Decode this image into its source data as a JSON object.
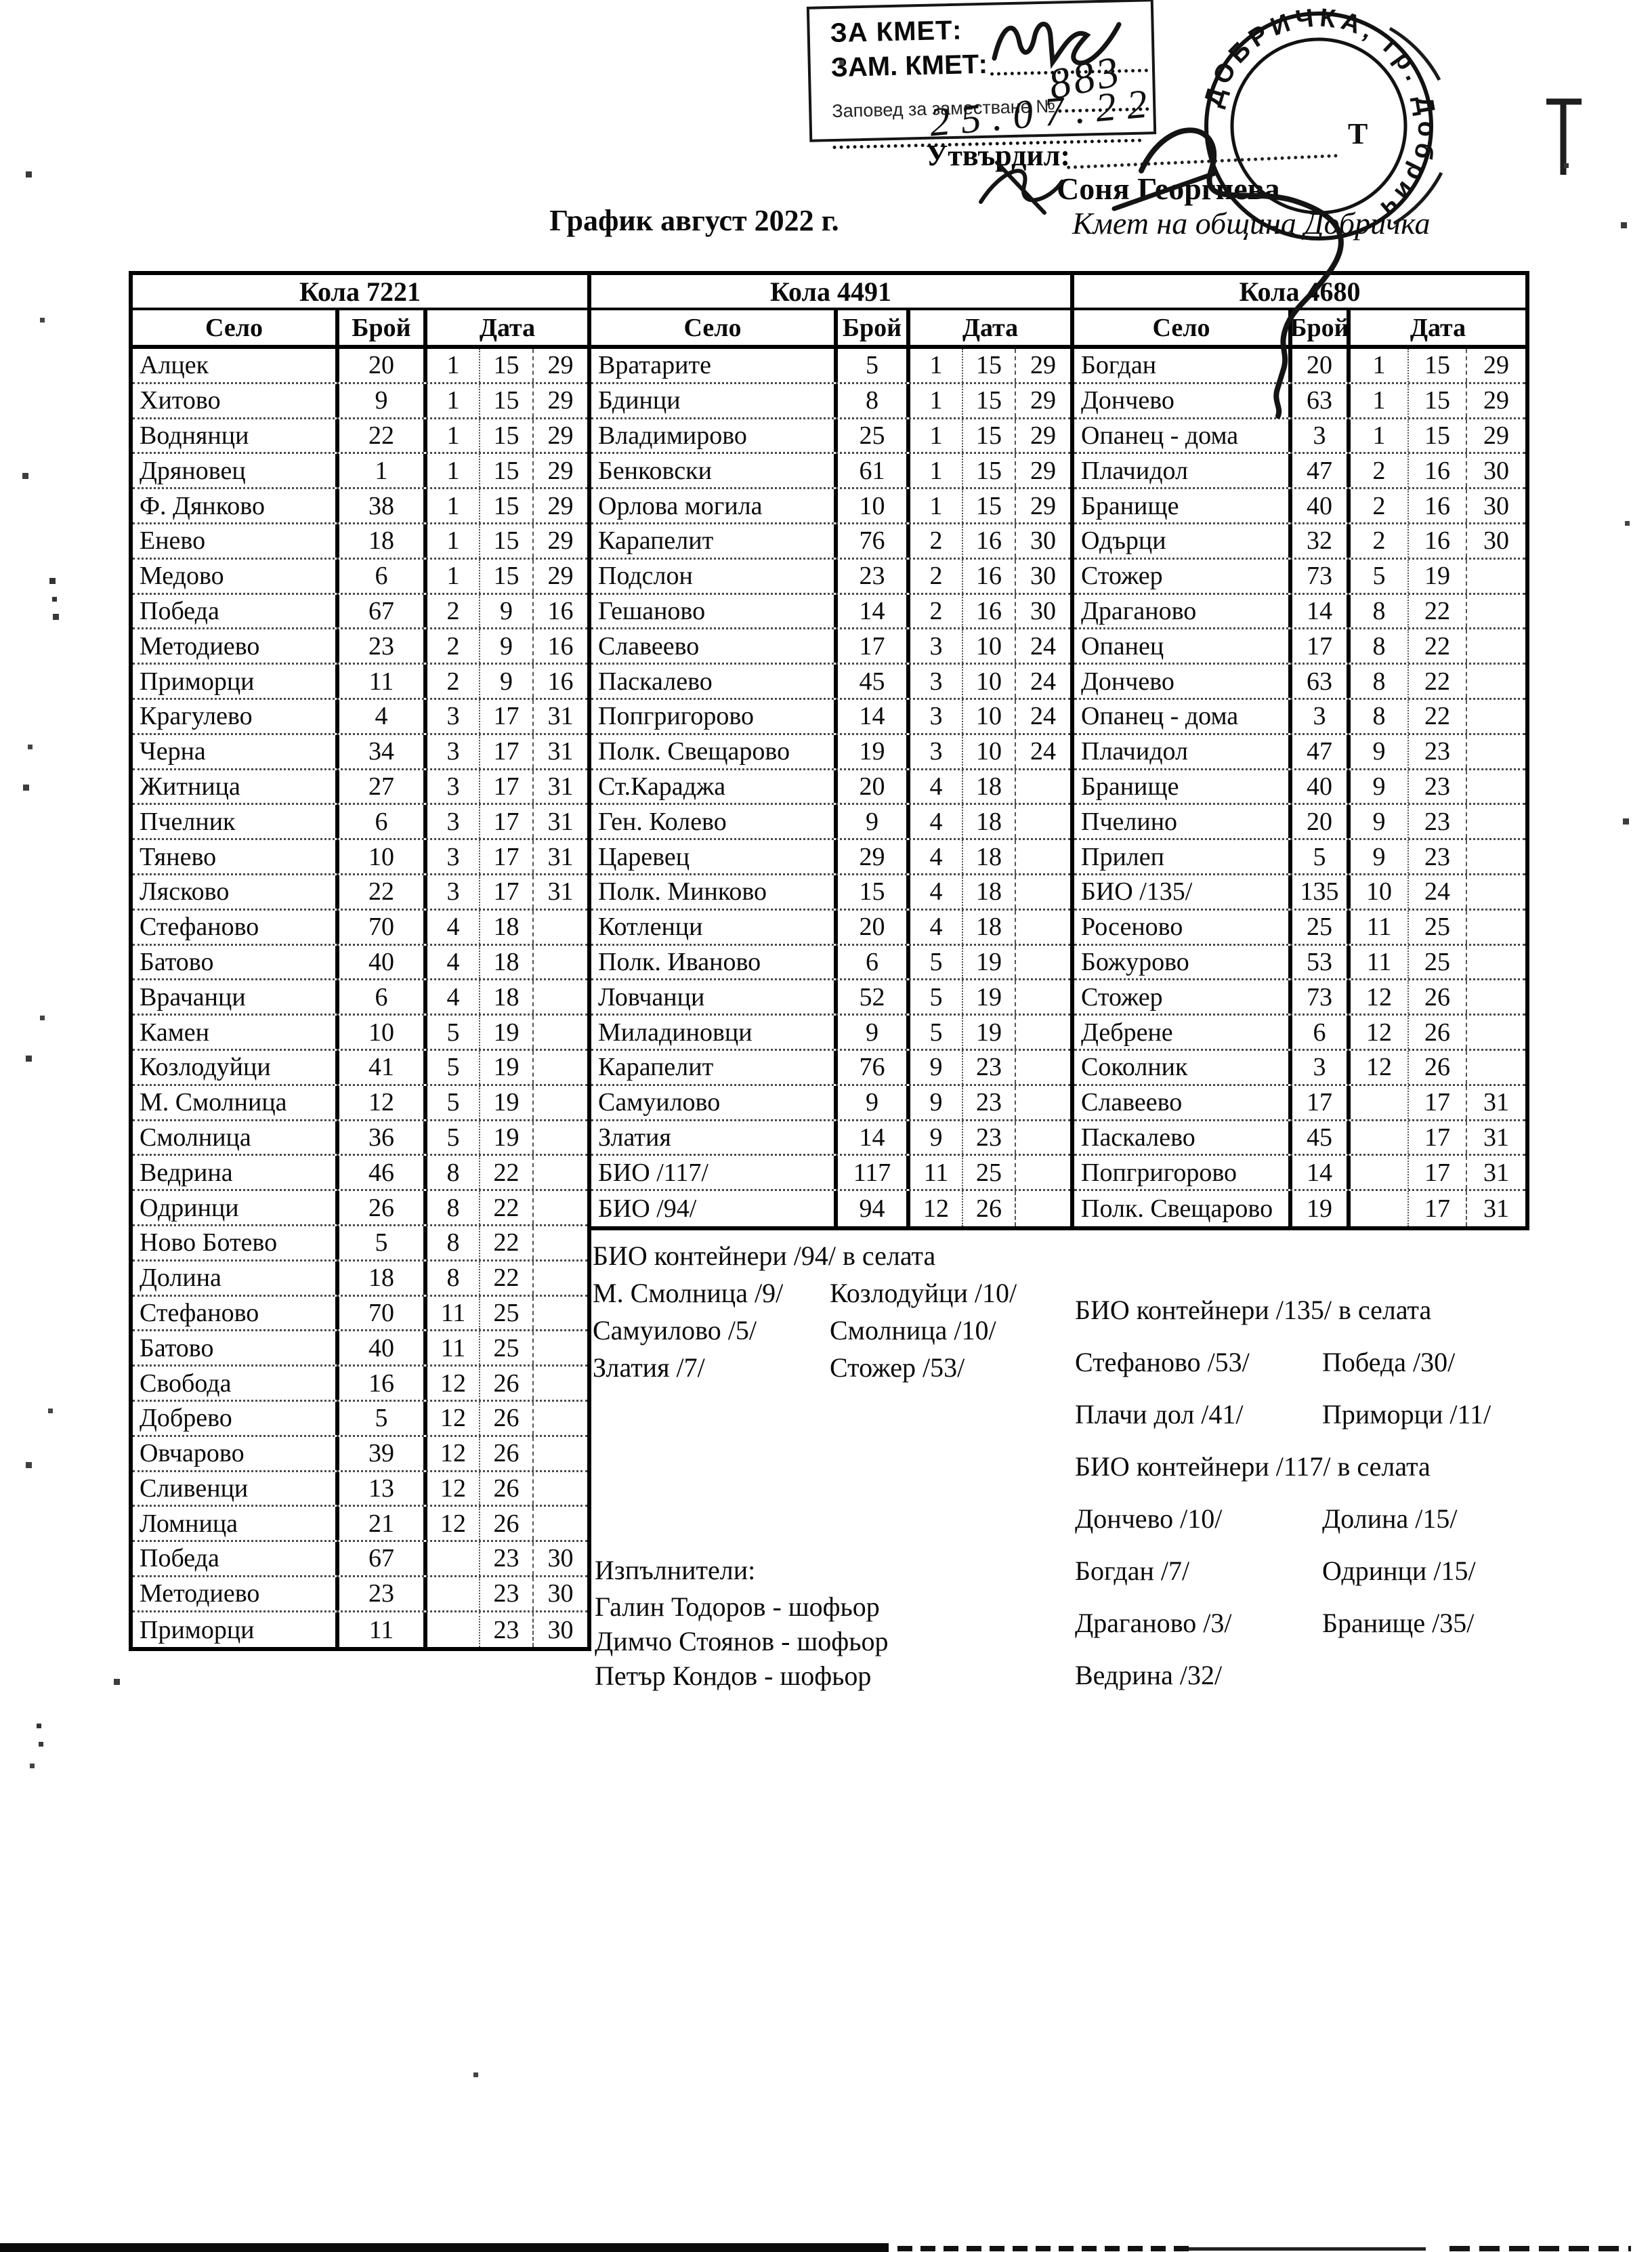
{
  "header": {
    "title": "График август 2022 г.",
    "stamp_box": {
      "line1": "ЗА КМЕТ:",
      "line2": "ЗАМ. КМЕТ:",
      "line3": "Заповед за заместване №",
      "handwritten_number": "883",
      "handwritten_date": "25.07.22"
    },
    "approval_label": "Утвърдил:",
    "approver_name": "Соня Георгиева",
    "approver_title": "Кмет на община Добричка",
    "round_stamp_text": "ДОБРИЧКА, гр. Добрич",
    "round_stamp_mark": "Т"
  },
  "tables": [
    {
      "title": "Кола 7221",
      "headers": {
        "village": "Село",
        "count": "Брой",
        "date": "Дата"
      },
      "rows": [
        [
          "Алцек",
          "20",
          "1",
          "15",
          "29"
        ],
        [
          "Хитово",
          "9",
          "1",
          "15",
          "29"
        ],
        [
          "Воднянци",
          "22",
          "1",
          "15",
          "29"
        ],
        [
          "Дряновец",
          "1",
          "1",
          "15",
          "29"
        ],
        [
          "Ф. Дянково",
          "38",
          "1",
          "15",
          "29"
        ],
        [
          "Енево",
          "18",
          "1",
          "15",
          "29"
        ],
        [
          "Медово",
          "6",
          "1",
          "15",
          "29"
        ],
        [
          "Победа",
          "67",
          "2",
          "9",
          "16"
        ],
        [
          "Методиево",
          "23",
          "2",
          "9",
          "16"
        ],
        [
          "Приморци",
          "11",
          "2",
          "9",
          "16"
        ],
        [
          "Крагулево",
          "4",
          "3",
          "17",
          "31"
        ],
        [
          "Черна",
          "34",
          "3",
          "17",
          "31"
        ],
        [
          "Житница",
          "27",
          "3",
          "17",
          "31"
        ],
        [
          "Пчелник",
          "6",
          "3",
          "17",
          "31"
        ],
        [
          "Тянево",
          "10",
          "3",
          "17",
          "31"
        ],
        [
          "Лясково",
          "22",
          "3",
          "17",
          "31"
        ],
        [
          "Стефаново",
          "70",
          "4",
          "18",
          ""
        ],
        [
          "Батово",
          "40",
          "4",
          "18",
          ""
        ],
        [
          "Врачанци",
          "6",
          "4",
          "18",
          ""
        ],
        [
          "Камен",
          "10",
          "5",
          "19",
          ""
        ],
        [
          "Козлодуйци",
          "41",
          "5",
          "19",
          ""
        ],
        [
          "М. Смолница",
          "12",
          "5",
          "19",
          ""
        ],
        [
          "Смолница",
          "36",
          "5",
          "19",
          ""
        ],
        [
          "Ведрина",
          "46",
          "8",
          "22",
          ""
        ],
        [
          "Одринци",
          "26",
          "8",
          "22",
          ""
        ],
        [
          "Ново Ботево",
          "5",
          "8",
          "22",
          ""
        ],
        [
          "Долина",
          "18",
          "8",
          "22",
          ""
        ],
        [
          "Стефаново",
          "70",
          "11",
          "25",
          ""
        ],
        [
          "Батово",
          "40",
          "11",
          "25",
          ""
        ],
        [
          "Свобода",
          "16",
          "12",
          "26",
          ""
        ],
        [
          "Добрево",
          "5",
          "12",
          "26",
          ""
        ],
        [
          "Овчарово",
          "39",
          "12",
          "26",
          ""
        ],
        [
          "Сливенци",
          "13",
          "12",
          "26",
          ""
        ],
        [
          "Ломница",
          "21",
          "12",
          "26",
          ""
        ],
        [
          "Победа",
          "67",
          "",
          "23",
          "30"
        ],
        [
          "Методиево",
          "23",
          "",
          "23",
          "30"
        ],
        [
          "Приморци",
          "11",
          "",
          "23",
          "30"
        ]
      ]
    },
    {
      "title": "Кола 4491",
      "headers": {
        "village": "Село",
        "count": "Брой",
        "date": "Дата"
      },
      "rows": [
        [
          "Вратарите",
          "5",
          "1",
          "15",
          "29"
        ],
        [
          "Бдинци",
          "8",
          "1",
          "15",
          "29"
        ],
        [
          "Владимирово",
          "25",
          "1",
          "15",
          "29"
        ],
        [
          "Бенковски",
          "61",
          "1",
          "15",
          "29"
        ],
        [
          "Орлова могила",
          "10",
          "1",
          "15",
          "29"
        ],
        [
          "Карапелит",
          "76",
          "2",
          "16",
          "30"
        ],
        [
          "Подслон",
          "23",
          "2",
          "16",
          "30"
        ],
        [
          "Гешаново",
          "14",
          "2",
          "16",
          "30"
        ],
        [
          "Славеево",
          "17",
          "3",
          "10",
          "24"
        ],
        [
          "Паскалево",
          "45",
          "3",
          "10",
          "24"
        ],
        [
          "Попгригорово",
          "14",
          "3",
          "10",
          "24"
        ],
        [
          "Полк. Свещарово",
          "19",
          "3",
          "10",
          "24"
        ],
        [
          "Ст.Караджа",
          "20",
          "4",
          "18",
          ""
        ],
        [
          "Ген. Колево",
          "9",
          "4",
          "18",
          ""
        ],
        [
          "Царевец",
          "29",
          "4",
          "18",
          ""
        ],
        [
          "Полк. Минково",
          "15",
          "4",
          "18",
          ""
        ],
        [
          "Котленци",
          "20",
          "4",
          "18",
          ""
        ],
        [
          "Полк. Иваново",
          "6",
          "5",
          "19",
          ""
        ],
        [
          "Ловчанци",
          "52",
          "5",
          "19",
          ""
        ],
        [
          "Миладиновци",
          "9",
          "5",
          "19",
          ""
        ],
        [
          "Карапелит",
          "76",
          "9",
          "23",
          ""
        ],
        [
          "Самуилово",
          "9",
          "9",
          "23",
          ""
        ],
        [
          "Златия",
          "14",
          "9",
          "23",
          ""
        ],
        [
          "БИО /117/",
          "117",
          "11",
          "25",
          ""
        ],
        [
          "БИО /94/",
          "94",
          "12",
          "26",
          ""
        ]
      ]
    },
    {
      "title": "Кола 4680",
      "headers": {
        "village": "Село",
        "count": "Брой",
        "date": "Дата"
      },
      "rows": [
        [
          "Богдан",
          "20",
          "1",
          "15",
          "29"
        ],
        [
          "Дончево",
          "63",
          "1",
          "15",
          "29"
        ],
        [
          "Опанец - дома",
          "3",
          "1",
          "15",
          "29"
        ],
        [
          "Плачидол",
          "47",
          "2",
          "16",
          "30"
        ],
        [
          "Бранище",
          "40",
          "2",
          "16",
          "30"
        ],
        [
          "Одърци",
          "32",
          "2",
          "16",
          "30"
        ],
        [
          "Стожер",
          "73",
          "5",
          "19",
          ""
        ],
        [
          "Драганово",
          "14",
          "8",
          "22",
          ""
        ],
        [
          "Опанец",
          "17",
          "8",
          "22",
          ""
        ],
        [
          "Дончево",
          "63",
          "8",
          "22",
          ""
        ],
        [
          "Опанец - дома",
          "3",
          "8",
          "22",
          ""
        ],
        [
          "Плачидол",
          "47",
          "9",
          "23",
          ""
        ],
        [
          "Бранище",
          "40",
          "9",
          "23",
          ""
        ],
        [
          "Пчелино",
          "20",
          "9",
          "23",
          ""
        ],
        [
          "Прилеп",
          "5",
          "9",
          "23",
          ""
        ],
        [
          "БИО /135/",
          "135",
          "10",
          "24",
          ""
        ],
        [
          "Росеново",
          "25",
          "11",
          "25",
          ""
        ],
        [
          "Божурово",
          "53",
          "11",
          "25",
          ""
        ],
        [
          "Стожер",
          "73",
          "12",
          "26",
          ""
        ],
        [
          "Дебрене",
          "6",
          "12",
          "26",
          ""
        ],
        [
          "Соколник",
          "3",
          "12",
          "26",
          ""
        ],
        [
          "Славеево",
          "17",
          "",
          "17",
          "31"
        ],
        [
          "Паскалево",
          "45",
          "",
          "17",
          "31"
        ],
        [
          "Попгригорово",
          "14",
          "",
          "17",
          "31"
        ],
        [
          "Полк. Свещарово",
          "19",
          "",
          "17",
          "31"
        ]
      ]
    }
  ],
  "notes_bio94": {
    "lines": [
      {
        "full": "БИО контейнери /94/ в селата"
      },
      {
        "a": "М. Смолница /9/",
        "b": "Козлодуйци /10/"
      },
      {
        "a": "Самуилово /5/",
        "b": "Смолница /10/"
      },
      {
        "a": "Златия /7/",
        "b": "Стожер /53/"
      }
    ]
  },
  "notes_bio135_117": {
    "lines": [
      {
        "full": "БИО контейнери /135/ в селата"
      },
      {
        "a": "Стефаново /53/",
        "b": "Победа /30/"
      },
      {
        "a": "Плачи дол /41/",
        "b": "Приморци /11/"
      },
      {
        "full": "БИО контейнери /117/ в селата"
      },
      {
        "a": "Дончево /10/",
        "b": "Долина /15/"
      },
      {
        "a": "Богдан /7/",
        "b": "Одринци /15/"
      },
      {
        "a": "Драганово /3/",
        "b": "Бранище /35/"
      },
      {
        "a": "Ведрина /32/",
        "b": ""
      }
    ]
  },
  "executors": {
    "label": "Изпълнители:",
    "items": [
      "Галин Тодоров - шофьор",
      "Димчо Стоянов - шофьор",
      "Петър Кондов - шофьор"
    ]
  }
}
